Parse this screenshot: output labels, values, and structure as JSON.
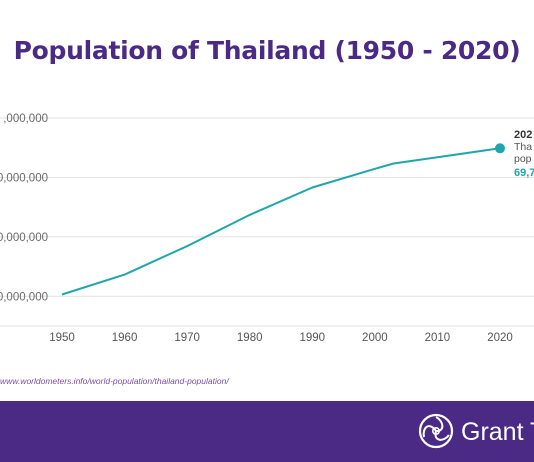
{
  "title": "Population of Thailand (1950 - 2020)",
  "source": "www.worldometers.info/world-population/thailand-population/",
  "brand": {
    "name": "Grant Th",
    "colors": {
      "brand": "#4b2a86",
      "line": "#1fa6ac"
    }
  },
  "annotation": {
    "year": "202",
    "line1": "Tha",
    "line2": "pop",
    "value": "69,7"
  },
  "chart_data": {
    "type": "line",
    "title": "Population of Thailand (1950 - 2020)",
    "xlabel": "",
    "ylabel": "",
    "x_ticks": [
      "1950",
      "1960",
      "1970",
      "1980",
      "1990",
      "2000",
      "2010",
      "2020"
    ],
    "y_ticks": [
      {
        "value": 20000000,
        "label": "0,000,000"
      },
      {
        "value": 40000000,
        "label": "0,000,000"
      },
      {
        "value": 60000000,
        "label": "0,000,000"
      },
      {
        "value": 80000000,
        "label": ",000,000"
      }
    ],
    "ylim": [
      10000000,
      80000000
    ],
    "xlim": [
      1950,
      2020
    ],
    "grid": true,
    "series": [
      {
        "x": [
          1950,
          1960,
          1970,
          1980,
          1990,
          2000,
          2003,
          2010,
          2020
        ],
        "values": [
          20600000,
          27300000,
          36900000,
          47400000,
          56600000,
          62900000,
          64700000,
          66800000,
          69800000
        ]
      }
    ]
  }
}
